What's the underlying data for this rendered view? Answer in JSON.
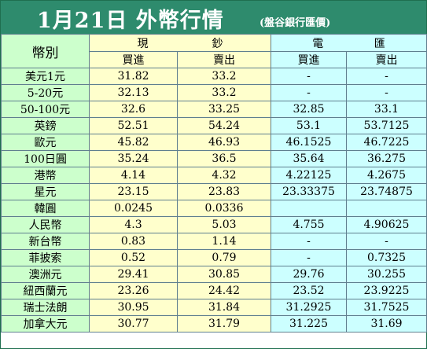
{
  "header": {
    "title": "1月21日 外幣行情",
    "subtitle": "(盤谷銀行匯價)"
  },
  "table": {
    "currency_header": "幣別",
    "cash_group": [
      "現",
      "鈔"
    ],
    "wire_group": [
      "電",
      "匯"
    ],
    "sub_headers": [
      "買進",
      "賣出",
      "買進",
      "賣出"
    ],
    "rows": [
      [
        "美元1元",
        "31.82",
        "33.2",
        "-",
        "-"
      ],
      [
        "5-20元",
        "32.13",
        "33.2",
        "-",
        "-"
      ],
      [
        "50-100元",
        "32.6",
        "33.25",
        "32.85",
        "33.1"
      ],
      [
        "英鎊",
        "52.51",
        "54.24",
        "53.1",
        "53.7125"
      ],
      [
        "歐元",
        "45.82",
        "46.93",
        "46.1525",
        "46.7225"
      ],
      [
        "100日圓",
        "35.24",
        "36.5",
        "35.64",
        "36.275"
      ],
      [
        "港幣",
        "4.14",
        "4.32",
        "4.22125",
        "4.2675"
      ],
      [
        "星元",
        "23.15",
        "23.83",
        "23.33375",
        "23.74875"
      ],
      [
        "韓圓",
        "0.0245",
        "0.0336",
        "",
        ""
      ],
      [
        "人民幣",
        "4.3",
        "5.03",
        "4.755",
        "4.90625"
      ],
      [
        "新台幣",
        "0.83",
        "1.14",
        "-",
        "-"
      ],
      [
        "菲披索",
        "0.52",
        "0.79",
        "-",
        "0.7325"
      ],
      [
        "澳洲元",
        "29.41",
        "30.85",
        "29.76",
        "30.255"
      ],
      [
        "紐西蘭元",
        "23.26",
        "24.42",
        "23.52",
        "23.9225"
      ],
      [
        "瑞士法朗",
        "30.95",
        "31.84",
        "31.2925",
        "31.7525"
      ],
      [
        "加拿大元",
        "30.77",
        "31.79",
        "31.225",
        "31.69"
      ]
    ]
  },
  "colors": {
    "title_bar": "#2e8b6d",
    "currency_column": "#ccffcc",
    "cash_columns": "#ffffcc",
    "wire_columns": "#ccffff"
  }
}
